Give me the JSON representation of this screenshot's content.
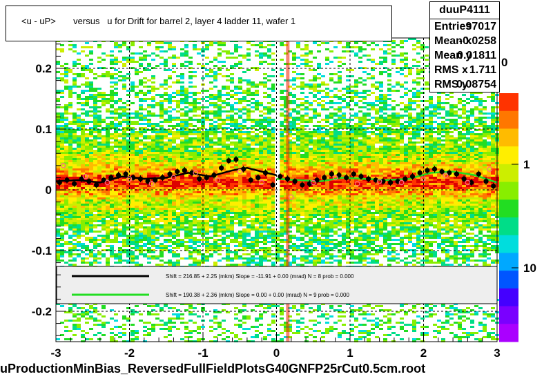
{
  "title": "<u - uP>       versus   u for Drift for barrel 2, layer 4 ladder 11, wafer 1",
  "stats": {
    "name": "duuP4111",
    "rows": [
      {
        "label": "Entries",
        "value": "97017"
      },
      {
        "label": "Mean x",
        "value": "-0.0258"
      },
      {
        "label": "Mean y",
        "value": "0.01811"
      },
      {
        "label": "RMS x",
        "value": "1.711"
      },
      {
        "label": "RMS y",
        "value": "0.08754"
      }
    ]
  },
  "filename": "uProductionMinBias_ReversedFullFieldPlotsG40GNFP25rCut0.5cm.root",
  "colors": {
    "fit_black": "#000000",
    "fit_green": "#22dd22",
    "points": "#000000",
    "open_points": "#ff6688"
  },
  "chart_data": {
    "type": "heatmap",
    "xlim": [
      -3,
      3
    ],
    "ylim": [
      -0.25,
      0.25
    ],
    "x_ticks": [
      -3,
      -2,
      -1,
      0,
      1,
      2,
      3
    ],
    "x_tick_labels": [
      "-3",
      "-2",
      "-1",
      "0",
      "1",
      "2",
      "3"
    ],
    "y_ticks": [
      -0.2,
      -0.1,
      0,
      0.1,
      0.2
    ],
    "y_tick_labels": [
      "-0.2",
      "-0.1",
      "0",
      "0.1",
      "0.2"
    ],
    "grid": true,
    "colorbar": {
      "scale": "log",
      "tick_labels": [
        "1",
        "10"
      ],
      "partial_top_label": "0"
    },
    "legend": {
      "placement": "bottom",
      "entries": [
        {
          "color": "#000000",
          "text": "Shift =   216.85 + 2.25 (mkm) Slope =   -11.91 + 0.00 (mrad)  N = 8 prob = 0.000"
        },
        {
          "color": "#22dd22",
          "text": "Shift =   190.38 + 2.36 (mkm) Slope =     0.00 + 0.00 (mrad)  N = 9 prob = 0.000"
        }
      ]
    },
    "series": [
      {
        "marker": "filled-circle",
        "x": [
          -2.95,
          -2.85,
          -2.75,
          -2.65,
          -2.55,
          -2.45,
          -2.35,
          -2.25,
          -2.15,
          -2.05,
          -1.95,
          -1.85,
          -1.75,
          -1.65,
          -1.55,
          -1.45,
          -1.35,
          -1.25,
          -1.15,
          -1.05,
          -0.95,
          -0.85,
          -0.75,
          -0.65,
          -0.55,
          -0.45,
          -0.35,
          -0.25,
          -0.15,
          -0.05,
          0.05,
          0.15,
          0.25,
          0.35,
          0.45,
          0.55,
          0.65,
          0.75,
          0.85,
          0.95,
          1.05,
          1.15,
          1.25,
          1.35,
          1.45,
          1.55,
          1.65,
          1.75,
          1.85,
          1.95,
          2.05,
          2.15,
          2.25,
          2.35,
          2.45,
          2.55,
          2.65,
          2.75,
          2.85,
          2.95
        ],
        "y": [
          0.012,
          0.016,
          0.01,
          0.018,
          0.014,
          0.008,
          0.016,
          0.02,
          0.024,
          0.026,
          0.02,
          0.018,
          0.014,
          0.016,
          0.02,
          0.026,
          0.03,
          0.032,
          0.028,
          0.018,
          0.02,
          0.024,
          0.036,
          0.048,
          0.05,
          0.034,
          0.016,
          0.02,
          0.028,
          0.008,
          0.022,
          0.018,
          0.014,
          0.008,
          0.01,
          0.016,
          0.02,
          0.026,
          0.024,
          0.02,
          0.026,
          0.022,
          0.018,
          0.016,
          0.014,
          0.012,
          0.014,
          0.018,
          0.022,
          0.028,
          0.032,
          0.034,
          0.03,
          0.028,
          0.026,
          0.018,
          0.012,
          0.026,
          0.014,
          0.006
        ]
      },
      {
        "marker": "open-circle",
        "x": [
          -2.9,
          -2.6,
          -2.3,
          -2.0,
          -1.7,
          -1.4,
          -1.1,
          -0.8,
          -0.5,
          -0.2,
          0.2,
          0.5,
          0.8,
          1.1,
          1.4,
          1.7,
          2.0,
          2.3,
          2.6,
          2.9
        ],
        "y": [
          0.04,
          0.022,
          0.012,
          0.018,
          0.01,
          0.02,
          0.028,
          0.016,
          0.03,
          0.012,
          -0.012,
          0.012,
          0.02,
          0.01,
          0.014,
          0.012,
          0.018,
          0.024,
          0.012,
          0.034
        ]
      }
    ],
    "fits": [
      {
        "color": "#000000",
        "x": [
          -3.0,
          -2.7,
          -2.4,
          -2.1,
          -1.8,
          -1.5,
          -1.2,
          -0.9,
          -0.6,
          -0.4,
          -0.2,
          0.0
        ],
        "y": [
          0.014,
          0.016,
          0.012,
          0.022,
          0.018,
          0.02,
          0.028,
          0.022,
          0.032,
          0.036,
          0.03,
          0.024
        ]
      },
      {
        "color": "#22dd22",
        "x": [
          0.0,
          0.3,
          0.6,
          0.9,
          1.2,
          1.5,
          1.8,
          2.1,
          2.4,
          2.7,
          3.0
        ],
        "y": [
          0.018,
          0.016,
          0.014,
          0.02,
          0.018,
          0.016,
          0.018,
          0.028,
          0.03,
          0.024,
          0.012
        ]
      }
    ]
  }
}
